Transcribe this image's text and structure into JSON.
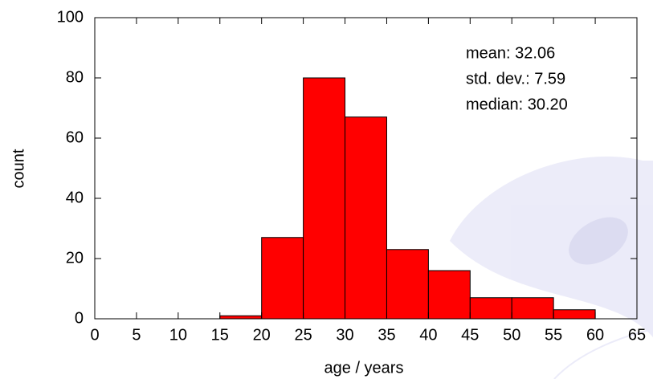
{
  "chart_data": {
    "type": "histogram",
    "xlabel": "age / years",
    "ylabel": "count",
    "bins": [
      15,
      20,
      25,
      30,
      35,
      40,
      45,
      50,
      55,
      60
    ],
    "counts": [
      1,
      27,
      80,
      67,
      23,
      16,
      7,
      7,
      3
    ],
    "color": "#ff0000",
    "xlim": [
      0,
      65
    ],
    "xticks": [
      0,
      5,
      10,
      15,
      20,
      25,
      30,
      35,
      40,
      45,
      50,
      55,
      60,
      65
    ],
    "ylim": [
      0,
      100
    ],
    "yticks": [
      0,
      20,
      40,
      60,
      80,
      100
    ],
    "annotations": [
      "mean: 32.06",
      "std. dev.: 7.59",
      "median: 30.20"
    ]
  }
}
